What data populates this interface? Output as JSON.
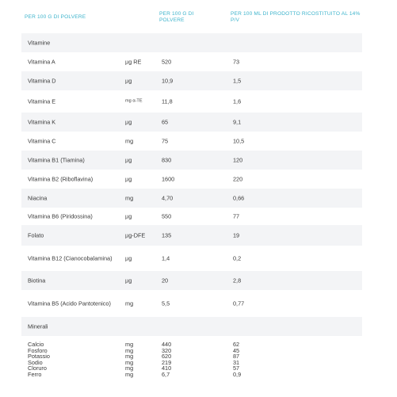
{
  "header": {
    "col1": "PER 100 G DI POLVERE",
    "col2": "PER 100 G DI POLVERE",
    "col3": "PER 100 ML DI PRODOTTO RICOSTITUITO AL 14% P/V"
  },
  "rows": [
    {
      "name": "Vitamine",
      "unit": "",
      "v1": "",
      "v2": ""
    },
    {
      "name": "Vitamina A",
      "unit": "µg RE",
      "v1": "520",
      "v2": "73"
    },
    {
      "name": "Vitamina D",
      "unit": "µg",
      "v1": "10,9",
      "v2": "1,5"
    },
    {
      "name": "Vitamina E",
      "unit": "mg α-TE",
      "v1": "11,8",
      "v2": "1,6"
    },
    {
      "name": "Vitamina K",
      "unit": "µg",
      "v1": "65",
      "v2": "9,1"
    },
    {
      "name": "Vitamina C",
      "unit": "mg",
      "v1": "75",
      "v2": "10,5"
    },
    {
      "name": "Vitamina B1 (Tiamina)",
      "unit": "µg",
      "v1": "830",
      "v2": "120"
    },
    {
      "name": "Vitamina B2 (Riboflavina)",
      "unit": "µg",
      "v1": "1600",
      "v2": "220"
    },
    {
      "name": "Niacina",
      "unit": "mg",
      "v1": "4,70",
      "v2": "0,66"
    },
    {
      "name": "Vitamina B6 (Piridossina)",
      "unit": "µg",
      "v1": "550",
      "v2": "77"
    },
    {
      "name": "Folato",
      "unit": "µg-DFE",
      "v1": "135",
      "v2": "19"
    },
    {
      "name": "Vitamina B12 (Cianocobalamina)",
      "unit": "µg",
      "v1": "1,4",
      "v2": "0,2"
    },
    {
      "name": "Biotina",
      "unit": "µg",
      "v1": "20",
      "v2": "2,8"
    },
    {
      "name": "Vitamina B5 (Acido Pantotenico)",
      "unit": "mg",
      "v1": "5,5",
      "v2": "0,77"
    },
    {
      "name": "Minerali",
      "unit": "",
      "v1": "",
      "v2": ""
    }
  ],
  "minerals": [
    {
      "name": "Calcio",
      "unit": "mg",
      "v1": "440",
      "v2": "62"
    },
    {
      "name": "Fosforo",
      "unit": "mg",
      "v1": "320",
      "v2": "45"
    },
    {
      "name": "Potassio",
      "unit": "mg",
      "v1": "620",
      "v2": "87"
    },
    {
      "name": "Sodio",
      "unit": "mg",
      "v1": "219",
      "v2": "31"
    },
    {
      "name": "Cloruro",
      "unit": "mg",
      "v1": "410",
      "v2": "57"
    },
    {
      "name": "Ferro",
      "unit": "mg",
      "v1": "6,7",
      "v2": "0,9"
    }
  ]
}
